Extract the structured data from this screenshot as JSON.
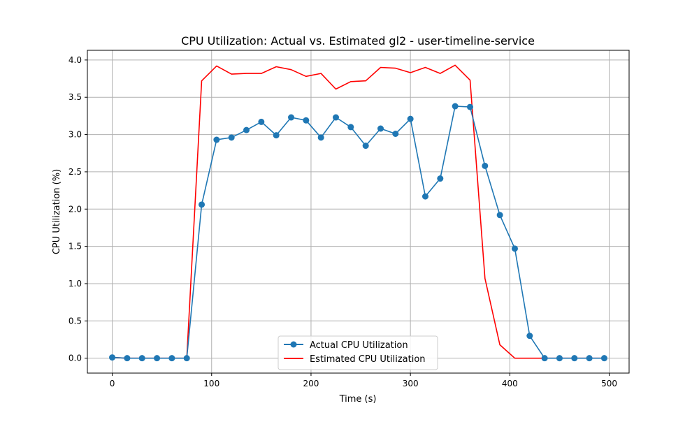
{
  "chart_data": {
    "type": "line",
    "title": "CPU Utilization: Actual vs. Estimated gl2 - user-timeline-service",
    "xlabel": "Time (s)",
    "ylabel": "CPU Utilization (%)",
    "xlim": [
      -25,
      520
    ],
    "ylim": [
      -0.2,
      4.13
    ],
    "xticks": [
      0,
      100,
      200,
      300,
      400,
      500
    ],
    "yticks": [
      0.0,
      0.5,
      1.0,
      1.5,
      2.0,
      2.5,
      3.0,
      3.5,
      4.0
    ],
    "xtick_labels": [
      "0",
      "100",
      "200",
      "300",
      "400",
      "500"
    ],
    "ytick_labels": [
      "0.0",
      "0.5",
      "1.0",
      "1.5",
      "2.0",
      "2.5",
      "3.0",
      "3.5",
      "4.0"
    ],
    "grid": true,
    "legend_position": "bottom-center",
    "series": [
      {
        "name": "Actual CPU Utilization",
        "color": "#1f77b4",
        "marker": "circle",
        "x": [
          0,
          15,
          30,
          45,
          60,
          75,
          90,
          105,
          120,
          135,
          150,
          165,
          180,
          195,
          210,
          225,
          240,
          255,
          270,
          285,
          300,
          315,
          330,
          345,
          360,
          375,
          390,
          405,
          420,
          435,
          450,
          465,
          480,
          495
        ],
        "values": [
          0.01,
          0.0,
          0.0,
          0.0,
          0.0,
          0.0,
          2.06,
          2.93,
          2.96,
          3.06,
          3.17,
          2.99,
          3.23,
          3.19,
          2.96,
          3.23,
          3.1,
          2.85,
          3.08,
          3.01,
          3.21,
          2.17,
          2.41,
          3.38,
          3.37,
          2.58,
          1.92,
          1.47,
          0.3,
          0.0,
          0.0,
          0.0,
          0.0,
          0.0
        ]
      },
      {
        "name": "Estimated CPU Utilization",
        "color": "#ff0000",
        "marker": "none",
        "x": [
          0,
          15,
          30,
          45,
          60,
          75,
          90,
          105,
          120,
          135,
          150,
          165,
          180,
          195,
          210,
          225,
          240,
          255,
          270,
          285,
          300,
          315,
          330,
          345,
          360,
          375,
          390,
          405,
          420,
          435,
          450,
          465,
          480,
          495
        ],
        "values": [
          0.01,
          0.0,
          0.0,
          0.0,
          0.0,
          0.0,
          3.72,
          3.92,
          3.81,
          3.82,
          3.82,
          3.91,
          3.87,
          3.78,
          3.82,
          3.61,
          3.71,
          3.72,
          3.9,
          3.89,
          3.83,
          3.9,
          3.82,
          3.93,
          3.73,
          1.07,
          0.18,
          0.0,
          0.0,
          0.0,
          0.0,
          0.0,
          0.0,
          0.0
        ]
      }
    ]
  }
}
